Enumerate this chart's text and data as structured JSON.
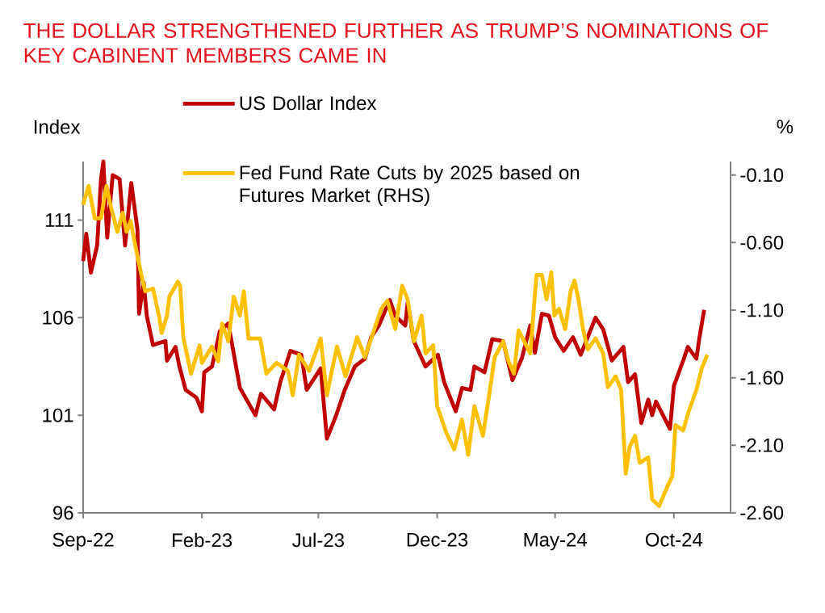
{
  "chart_data": {
    "type": "line",
    "title": "THE DOLLAR STRENGTHENED FURTHER AS TRUMP’S NOMINATIONS OF KEY CABINENT MEMBERS CAME IN",
    "ylabel": "Index",
    "y2label": "%",
    "legend": "top",
    "xlim": [
      "2022-09-01",
      "2024-12-13"
    ],
    "xticks": [
      {
        "value": "2022-09-01",
        "label": "Sep-22"
      },
      {
        "value": "2023-02-01",
        "label": "Feb-23"
      },
      {
        "value": "2023-07-01",
        "label": "Jul-23"
      },
      {
        "value": "2023-12-01",
        "label": "Dec-23"
      },
      {
        "value": "2024-05-01",
        "label": "May-24"
      },
      {
        "value": "2024-10-01",
        "label": "Oct-24"
      }
    ],
    "ylim": [
      96,
      114
    ],
    "yticks": [
      96,
      101,
      106,
      111
    ],
    "y2lim": [
      -2.6,
      0
    ],
    "y2ticks": [
      {
        "value": -2.6,
        "label": "-2.60"
      },
      {
        "value": -2.1,
        "label": "-2.10"
      },
      {
        "value": -1.6,
        "label": "-1.60"
      },
      {
        "value": -1.1,
        "label": "-1.10"
      },
      {
        "value": -0.6,
        "label": "-0.60"
      },
      {
        "value": -0.1,
        "label": "-0.10"
      }
    ],
    "series": [
      {
        "name": "US Dollar Index",
        "color": "#c00000",
        "axis": "y",
        "x": [
          "2022-09-01",
          "2022-09-05",
          "2022-09-11",
          "2022-09-19",
          "2022-09-24",
          "2022-09-27",
          "2022-10-02",
          "2022-10-09",
          "2022-10-18",
          "2022-10-25",
          "2022-11-02",
          "2022-11-10",
          "2022-11-12",
          "2022-11-18",
          "2022-11-22",
          "2022-11-30",
          "2022-12-16",
          "2022-12-18",
          "2022-12-29",
          "2023-01-03",
          "2023-01-11",
          "2023-01-25",
          "2023-02-01",
          "2023-02-04",
          "2023-02-14",
          "2023-02-24",
          "2023-03-07",
          "2023-03-22",
          "2023-04-11",
          "2023-04-18",
          "2023-05-05",
          "2023-05-13",
          "2023-05-26",
          "2023-06-09",
          "2023-06-16",
          "2023-07-04",
          "2023-07-12",
          "2023-07-24",
          "2023-08-04",
          "2023-08-17",
          "2023-08-30",
          "2023-09-07",
          "2023-09-17",
          "2023-10-01",
          "2023-10-08",
          "2023-10-21",
          "2023-10-24",
          "2023-11-01",
          "2023-11-16",
          "2023-12-02",
          "2023-12-10",
          "2023-12-25",
          "2024-01-02",
          "2024-01-13",
          "2024-01-18",
          "2024-01-31",
          "2024-02-10",
          "2024-02-24",
          "2024-03-07",
          "2024-03-19",
          "2024-03-30",
          "2024-04-05",
          "2024-04-14",
          "2024-04-23",
          "2024-05-01",
          "2024-05-12",
          "2024-05-24",
          "2024-06-03",
          "2024-06-22",
          "2024-07-02",
          "2024-07-13",
          "2024-07-28",
          "2024-08-03",
          "2024-08-12",
          "2024-08-20",
          "2024-08-29",
          "2024-09-03",
          "2024-09-08",
          "2024-09-26",
          "2024-10-01",
          "2024-10-13",
          "2024-10-19",
          "2024-10-30",
          "2024-11-03",
          "2024-11-09"
        ],
        "values": [
          108.9,
          110.3,
          108.3,
          109.7,
          113.1,
          114.0,
          110.1,
          113.3,
          113.1,
          109.7,
          112.9,
          110.5,
          106.2,
          107.8,
          106.1,
          104.6,
          104.8,
          103.8,
          104.5,
          103.5,
          102.3,
          101.9,
          101.2,
          103.2,
          103.5,
          105.3,
          105.7,
          102.4,
          101.0,
          102.1,
          101.3,
          102.7,
          104.3,
          104.1,
          102.3,
          103.4,
          99.8,
          101.0,
          102.3,
          103.5,
          103.9,
          105.0,
          105.6,
          106.9,
          106.1,
          105.6,
          106.8,
          104.8,
          103.5,
          104.1,
          102.7,
          101.2,
          102.4,
          102.3,
          103.5,
          103.2,
          104.9,
          104.8,
          102.8,
          103.9,
          105.6,
          104.2,
          106.2,
          106.1,
          105.0,
          104.3,
          105.0,
          104.1,
          106.0,
          105.4,
          103.8,
          104.5,
          102.7,
          103.1,
          100.6,
          101.8,
          101.0,
          101.7,
          100.3,
          102.5,
          103.8,
          104.5,
          103.9,
          105.0,
          106.4
        ]
      },
      {
        "name": "Fed Fund Rate Cuts by 2025 based on Futures Market (RHS)",
        "color": "#ffc000",
        "axis": "y2",
        "x": [
          "2022-09-01",
          "2022-09-08",
          "2022-09-16",
          "2022-09-24",
          "2022-10-01",
          "2022-10-07",
          "2022-10-15",
          "2022-10-22",
          "2022-10-27",
          "2022-11-01",
          "2022-11-10",
          "2022-11-15",
          "2022-11-20",
          "2022-11-30",
          "2022-12-08",
          "2022-12-11",
          "2022-12-18",
          "2022-12-21",
          "2023-01-01",
          "2023-01-04",
          "2023-01-08",
          "2023-01-18",
          "2023-01-29",
          "2023-02-01",
          "2023-02-14",
          "2023-02-22",
          "2023-02-27",
          "2023-03-07",
          "2023-03-14",
          "2023-03-22",
          "2023-03-27",
          "2023-04-02",
          "2023-04-17",
          "2023-04-25",
          "2023-05-08",
          "2023-05-23",
          "2023-05-29",
          "2023-06-06",
          "2023-06-19",
          "2023-07-04",
          "2023-07-12",
          "2023-07-19",
          "2023-07-25",
          "2023-08-05",
          "2023-08-20",
          "2023-08-30",
          "2023-09-20",
          "2023-09-28",
          "2023-10-08",
          "2023-10-17",
          "2023-10-24",
          "2023-11-01",
          "2023-11-11",
          "2023-11-16",
          "2023-11-26",
          "2023-12-01",
          "2023-12-13",
          "2023-12-23",
          "2024-01-02",
          "2024-01-10",
          "2024-01-18",
          "2024-01-29",
          "2024-02-07",
          "2024-02-13",
          "2024-02-24",
          "2024-03-02",
          "2024-03-09",
          "2024-03-15",
          "2024-03-30",
          "2024-04-07",
          "2024-04-14",
          "2024-04-20",
          "2024-04-26",
          "2024-04-30",
          "2024-05-06",
          "2024-05-14",
          "2024-05-21",
          "2024-05-26",
          "2024-05-31",
          "2024-06-06",
          "2024-06-12",
          "2024-06-22",
          "2024-07-02",
          "2024-07-08",
          "2024-07-18",
          "2024-07-25",
          "2024-07-31",
          "2024-08-05",
          "2024-08-12",
          "2024-08-18",
          "2024-08-29",
          "2024-09-03",
          "2024-09-12",
          "2024-09-23",
          "2024-09-29",
          "2024-10-03",
          "2024-10-13",
          "2024-10-20",
          "2024-10-30",
          "2024-11-06",
          "2024-11-13"
        ],
        "values": [
          -0.32,
          -0.18,
          -0.42,
          -0.42,
          -0.18,
          -0.34,
          -0.52,
          -0.38,
          -0.52,
          -0.44,
          -0.7,
          -0.84,
          -0.96,
          -0.94,
          -1.15,
          -1.27,
          -1.14,
          -1.0,
          -0.89,
          -0.92,
          -1.3,
          -1.57,
          -1.36,
          -1.49,
          -1.37,
          -1.48,
          -1.2,
          -1.33,
          -1.0,
          -1.14,
          -0.96,
          -1.31,
          -1.31,
          -1.57,
          -1.49,
          -1.55,
          -1.73,
          -1.43,
          -1.55,
          -1.31,
          -1.73,
          -1.53,
          -1.37,
          -1.59,
          -1.3,
          -1.45,
          -1.09,
          -1.03,
          -1.24,
          -0.92,
          -1.02,
          -1.33,
          -1.14,
          -1.42,
          -1.36,
          -1.81,
          -2.01,
          -2.13,
          -1.91,
          -2.17,
          -1.81,
          -2.03,
          -1.69,
          -1.45,
          -1.33,
          -1.48,
          -1.57,
          -1.25,
          -1.42,
          -0.84,
          -0.84,
          -1.02,
          -0.82,
          -1.14,
          -1.09,
          -1.24,
          -0.96,
          -0.88,
          -1.02,
          -1.24,
          -1.39,
          -1.31,
          -1.42,
          -1.67,
          -1.59,
          -1.69,
          -2.31,
          -2.11,
          -2.03,
          -2.23,
          -2.19,
          -2.5,
          -2.55,
          -2.4,
          -2.33,
          -1.95,
          -1.99,
          -1.85,
          -1.69,
          -1.53,
          -1.43
        ]
      }
    ]
  }
}
